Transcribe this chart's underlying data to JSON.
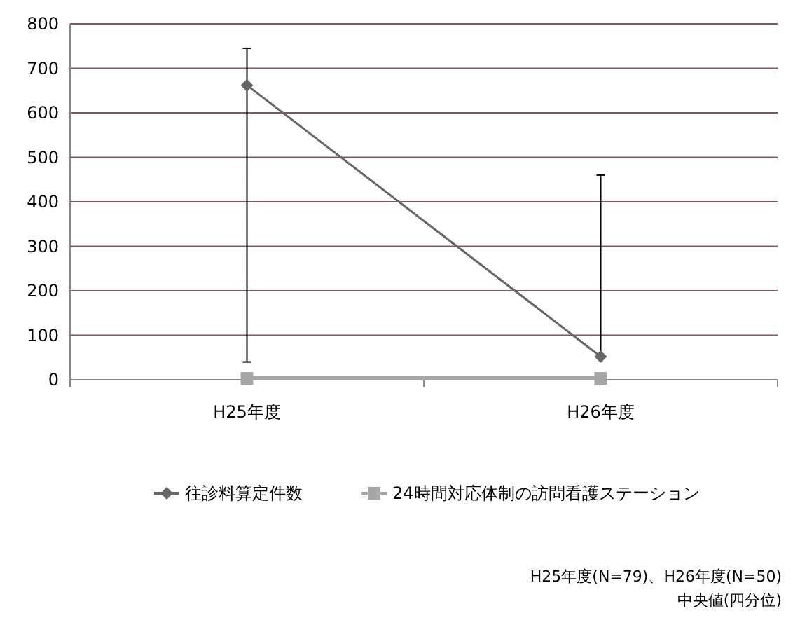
{
  "chart_data": {
    "type": "line",
    "categories": [
      "H25年度",
      "H26年度"
    ],
    "series": [
      {
        "name": "往診料算定件数",
        "color": "#666666",
        "values": [
          662,
          52
        ],
        "errors": [
          [
            40,
            745
          ],
          [
            52,
            460
          ]
        ],
        "marker": "diamond"
      },
      {
        "name": "24時間対応体制の訪問看護ステーション",
        "color": "#a6a6a6",
        "values": [
          3,
          3
        ],
        "marker": "square"
      }
    ],
    "ylim": [
      0,
      800
    ],
    "yticks": [
      0,
      100,
      200,
      300,
      400,
      500,
      600,
      700,
      800
    ],
    "grid": "y",
    "legend": "bottom",
    "annotations": [
      "H25年度(N=79)、H26年度(N=50)",
      "中央値(四分位)"
    ]
  }
}
